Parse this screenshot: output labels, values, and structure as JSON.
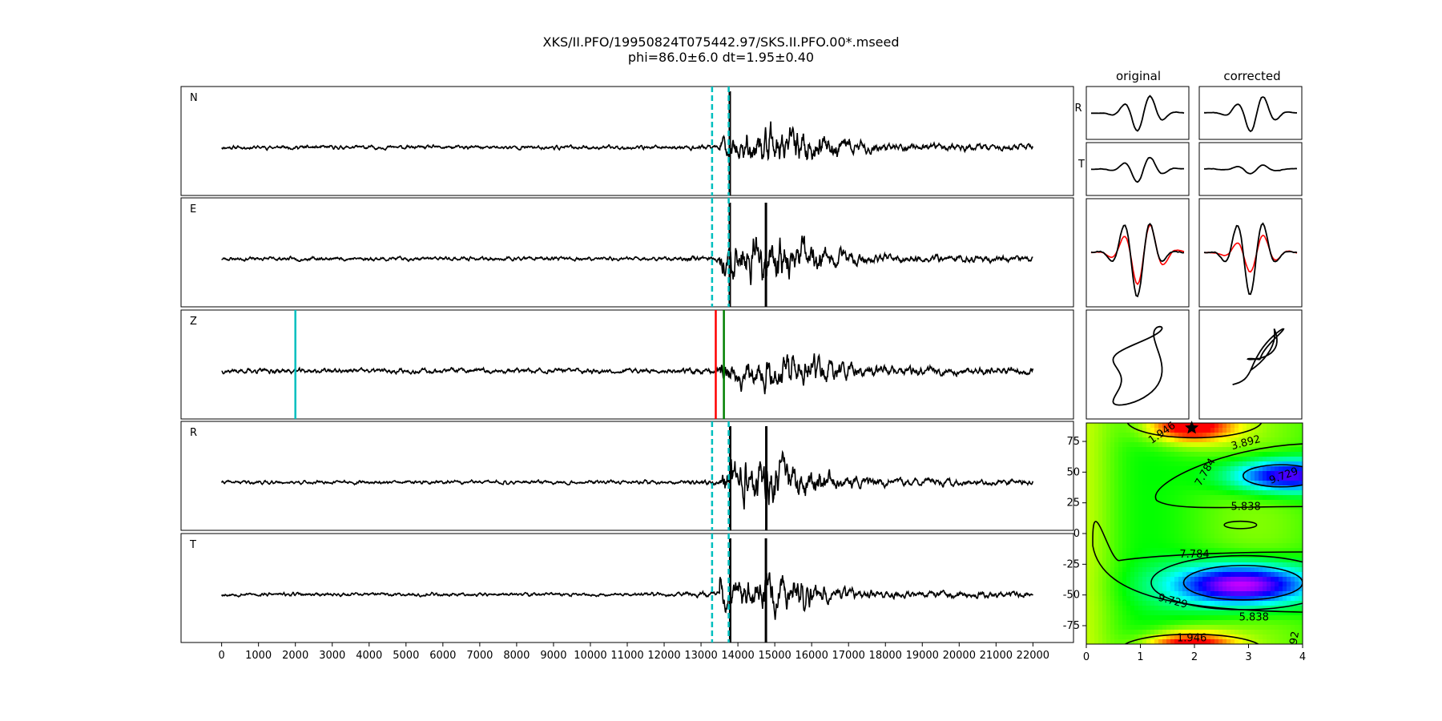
{
  "title": "XKS/II.PFO/19950824T075442.97/SKS.II.PFO.00*.mseed",
  "subtitle": "phi=86.0±6.0 dt=1.95±0.40",
  "chart_data": [
    {
      "type": "line",
      "kind": "seismogram-stack",
      "panels": [
        {
          "label": "N",
          "amp": 0.55,
          "seed": 11,
          "event_amp": 2.6,
          "event_center": 15200,
          "noise_amp": 0.35
        },
        {
          "label": "E",
          "amp": 0.55,
          "seed": 23,
          "event_amp": 3.4,
          "event_center": 14800,
          "noise_amp": 0.35
        },
        {
          "label": "Z",
          "amp": 0.55,
          "seed": 37,
          "event_amp": 2.4,
          "event_center": 15300,
          "noise_amp": 0.45
        },
        {
          "label": "R",
          "amp": 0.55,
          "seed": 41,
          "event_amp": 3.6,
          "event_center": 14700,
          "noise_amp": 0.32
        },
        {
          "label": "T",
          "amp": 0.55,
          "seed": 53,
          "event_amp": 2.8,
          "event_center": 14700,
          "noise_amp": 0.32
        }
      ],
      "x_range": [
        -1100,
        23100
      ],
      "x_ticks": [
        0,
        1000,
        2000,
        3000,
        4000,
        5000,
        6000,
        7000,
        8000,
        9000,
        10000,
        11000,
        12000,
        13000,
        14000,
        15000,
        16000,
        17000,
        18000,
        19000,
        20000,
        21000,
        22000
      ],
      "trace_range": [
        0,
        22000
      ],
      "window_lines": {
        "start": 13300,
        "end": 13750,
        "color": "#00bfbf",
        "style": "dashed",
        "panels": [
          "N",
          "E",
          "R",
          "T"
        ]
      },
      "pick_lines": [
        {
          "panel": "Z",
          "x": 2000,
          "color": "#00bfbf"
        },
        {
          "panel": "Z",
          "x": 13400,
          "color": "#ff0000"
        },
        {
          "panel": "Z",
          "x": 13620,
          "color": "#008000"
        }
      ],
      "dense_marks": [
        {
          "panel": "N",
          "x": 13780
        },
        {
          "panel": "E",
          "x": 13780
        },
        {
          "panel": "E",
          "x": 14760
        },
        {
          "panel": "R",
          "x": 13790
        },
        {
          "panel": "R",
          "x": 14770
        },
        {
          "panel": "T",
          "x": 13790
        },
        {
          "panel": "T",
          "x": 14760
        }
      ]
    },
    {
      "type": "line",
      "kind": "particle-motion-grid",
      "column_titles": [
        "original",
        "corrected"
      ],
      "row_labels": [
        "R",
        "T"
      ],
      "colors": {
        "radial": "#000000",
        "transverse": "#ff0000"
      }
    },
    {
      "type": "heatmap",
      "kind": "energy-grid-search",
      "xlim": [
        0,
        4
      ],
      "ylim": [
        -90,
        90
      ],
      "x_ticks": [
        0,
        1,
        2,
        3,
        4
      ],
      "y_ticks": [
        -75,
        -50,
        -25,
        0,
        25,
        50,
        75
      ],
      "colormap": "hsv",
      "contour_labels": [
        "1.946",
        "3.892",
        "5.838",
        "7.784",
        "9.729",
        "7.784",
        "9.729",
        "5.838",
        "1.946",
        "92"
      ],
      "best_fit": {
        "dt": 1.95,
        "phi": 86.0,
        "marker": "star"
      }
    }
  ]
}
